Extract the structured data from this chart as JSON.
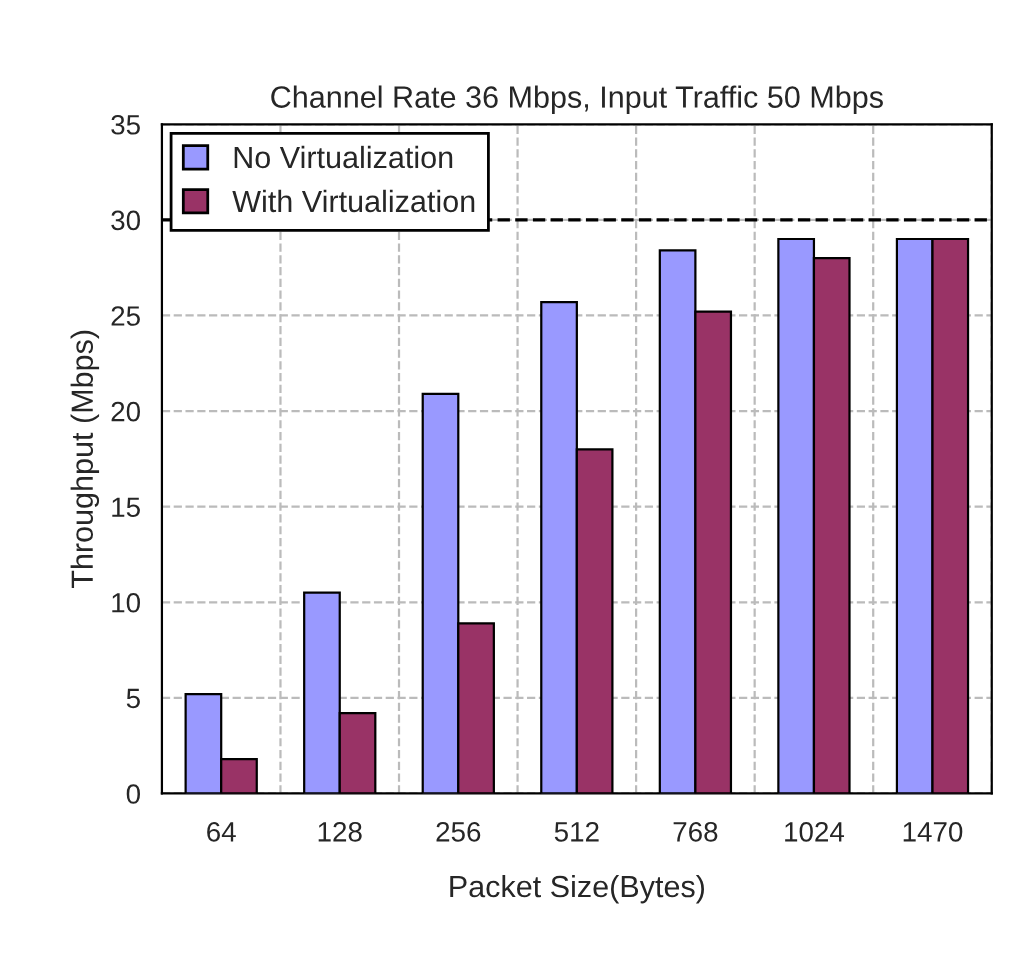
{
  "chart_data": {
    "type": "bar",
    "title": "Channel Rate 36 Mbps, Input Traffic 50 Mbps",
    "xlabel": "Packet Size(Bytes)",
    "ylabel": "Throughput (Mbps)",
    "categories": [
      "64",
      "128",
      "256",
      "512",
      "768",
      "1024",
      "1470"
    ],
    "series": [
      {
        "name": "No Virtualization",
        "color": "#9999ff",
        "values": [
          5.2,
          10.5,
          20.9,
          25.7,
          28.4,
          29.0,
          29.0
        ]
      },
      {
        "name": "With Virtualization",
        "color": "#993366",
        "values": [
          1.8,
          4.2,
          8.9,
          18.0,
          25.2,
          28.0,
          29.0
        ]
      }
    ],
    "ylim": [
      0,
      35
    ],
    "yticks": [
      0,
      5,
      10,
      15,
      20,
      25,
      30,
      35
    ],
    "ref_lines": [
      {
        "axis": "y",
        "value": 30,
        "color": "#000000",
        "line_style": "dashed"
      }
    ],
    "grid": true,
    "legend": "top left"
  }
}
